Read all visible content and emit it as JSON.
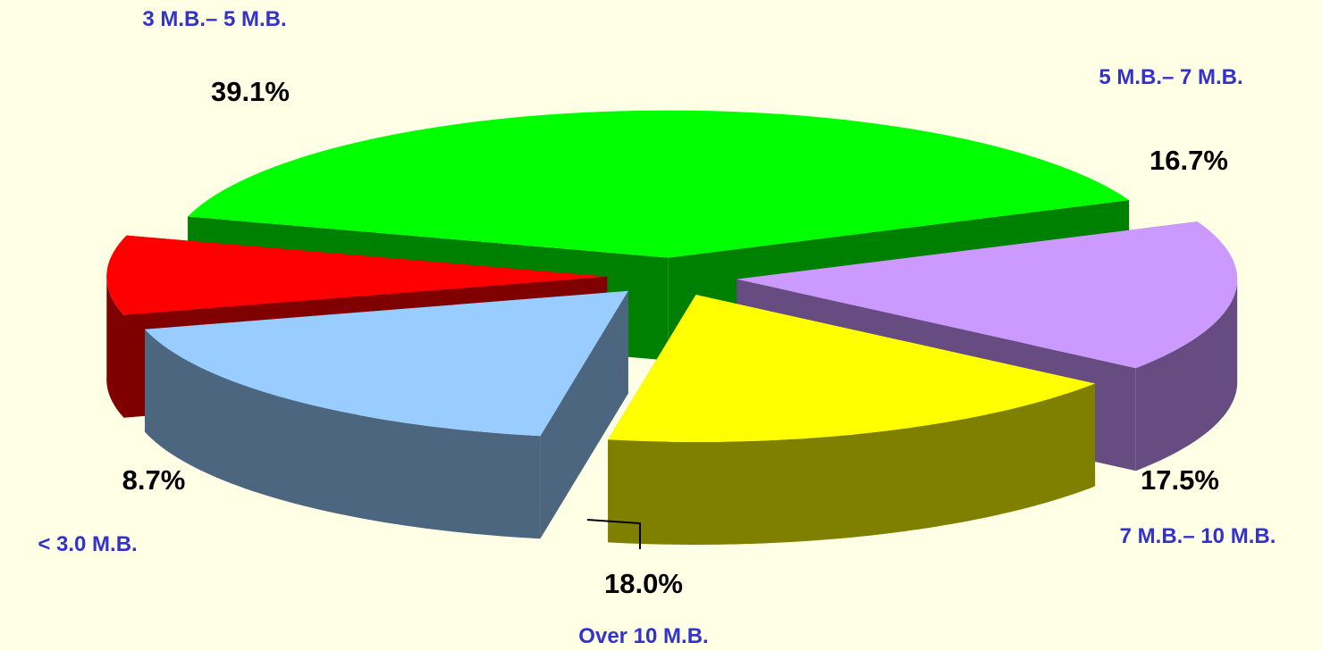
{
  "chart_data": {
    "type": "pie",
    "style": "3d-exploded",
    "legend": "none",
    "categories": [
      "3 M.B.– 5 M.B.",
      "5 M.B.– 7 M.B.",
      "7 M.B.– 10 M.B.",
      "Over 10 M.B.",
      "< 3.0 M.B."
    ],
    "values": [
      39.1,
      16.7,
      17.5,
      18.0,
      8.7
    ],
    "value_labels": [
      "39.1%",
      "16.7%",
      "17.5%",
      "18.0%",
      "8.7%"
    ],
    "colors": {
      "top": [
        "#00ff00",
        "#cc99ff",
        "#ffff00",
        "#99ccff",
        "#ff0000"
      ],
      "side": [
        "#008000",
        "#664c80",
        "#808000",
        "#4d6680",
        "#800000"
      ]
    },
    "category_label_color": "#3333cc",
    "value_label_color": "#000000",
    "background": "#ffffe5"
  }
}
